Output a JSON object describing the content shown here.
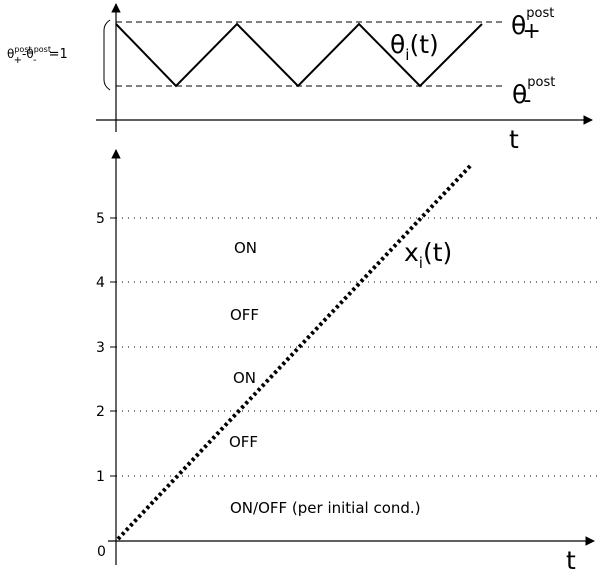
{
  "top_panel": {
    "x_axis_label": "t",
    "curve_label_main": "θ",
    "curve_label_sub": "i",
    "curve_label_rest": "(t)",
    "theta_plus_main": "θ",
    "theta_plus_sub": "+",
    "theta_plus_sup": "post",
    "theta_minus_main": "θ",
    "theta_minus_sub": "-",
    "theta_minus_sup": "post",
    "range_label": {
      "p1": "θ",
      "p1_sup": "post",
      "p1_sub": "+",
      "minus": "-",
      "p2": "θ",
      "p2_sup": "post",
      "p2_sub": "-",
      "equals": "=1"
    }
  },
  "bottom_panel": {
    "x_axis_label": "t",
    "origin_label": "0",
    "line_label_main": "x",
    "line_label_sub": "i",
    "line_label_rest": "(t)",
    "y_ticks": [
      "1",
      "2",
      "3",
      "4",
      "5"
    ],
    "regions": [
      "ON/OFF (per initial cond.)",
      "OFF",
      "ON",
      "OFF",
      "ON"
    ]
  }
}
